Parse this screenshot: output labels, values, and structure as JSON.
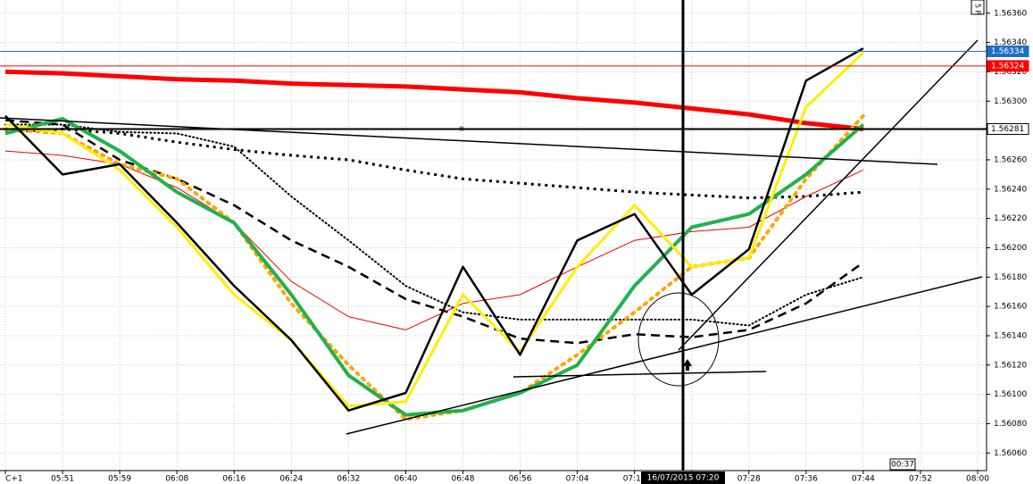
{
  "chart_data": {
    "type": "line",
    "categories": [
      "C+1",
      "05:51",
      "05:59",
      "06:08",
      "06:16",
      "06:24",
      "06:32",
      "06:40",
      "06:48",
      "06:56",
      "07:04",
      "07:12",
      null,
      "07:28",
      "07:36",
      "07:44",
      "07:52",
      "08:00"
    ],
    "ylim": [
      1.56048,
      1.56369
    ],
    "yticks": [
      {
        "value": 1.5636,
        "label": "1.56360"
      },
      {
        "value": 1.5634,
        "label": "1.56340"
      },
      {
        "value": 1.5632,
        "label": "1.56320"
      },
      {
        "value": 1.563,
        "label": "1.56300"
      },
      {
        "value": 1.5628,
        "label": "1.56280"
      },
      {
        "value": 1.5626,
        "label": "1.56260"
      },
      {
        "value": 1.5624,
        "label": "1.56240"
      },
      {
        "value": 1.5622,
        "label": "1.56220"
      },
      {
        "value": 1.562,
        "label": "1.56200"
      },
      {
        "value": 1.5618,
        "label": "1.56180"
      },
      {
        "value": 1.5616,
        "label": "1.56160"
      },
      {
        "value": 1.5614,
        "label": "1.56140"
      },
      {
        "value": 1.5612,
        "label": "1.56120"
      },
      {
        "value": 1.561,
        "label": "1.56100"
      },
      {
        "value": 1.5608,
        "label": "1.56080"
      },
      {
        "value": 1.5606,
        "label": "1.56060"
      }
    ],
    "grid": true,
    "series": [
      {
        "color": "#ff0000",
        "width": 5,
        "dash": "solid",
        "values": [
          1.5632,
          1.56319,
          1.56317,
          1.56315,
          1.56314,
          1.56312,
          1.56311,
          1.5631,
          1.56308,
          1.56306,
          1.56302,
          1.56299,
          1.56295,
          1.56291,
          1.56285,
          1.56281,
          null,
          null
        ]
      },
      {
        "color": "#000000",
        "width": 3,
        "dash": "square-dotted",
        "values": [
          1.56279,
          1.56281,
          1.56278,
          1.56272,
          1.56267,
          1.56263,
          1.5626,
          1.56253,
          1.56247,
          1.56244,
          1.56241,
          1.56238,
          1.56236,
          1.56234,
          1.56235,
          1.56238,
          null,
          null
        ]
      },
      {
        "color": "#000000",
        "width": 2,
        "dash": "dotted",
        "values": [
          1.56284,
          1.56284,
          1.56279,
          1.56278,
          1.56269,
          1.56235,
          1.56205,
          1.56174,
          1.56156,
          1.56151,
          1.56151,
          1.56151,
          1.56151,
          1.56147,
          1.56168,
          1.5618,
          null,
          null
        ]
      },
      {
        "color": "#000000",
        "width": 2.5,
        "dash": "dashed",
        "values": [
          1.56287,
          1.56284,
          1.5626,
          1.56247,
          1.56229,
          1.56205,
          1.56187,
          1.56165,
          1.56153,
          1.56138,
          1.56135,
          1.56141,
          1.56139,
          1.56144,
          1.56162,
          1.5619,
          null,
          null
        ]
      },
      {
        "color": "#ee0000",
        "width": 1,
        "dash": "solid",
        "values": [
          1.56266,
          1.56263,
          1.56257,
          1.56241,
          1.56217,
          1.56177,
          1.56153,
          1.56144,
          1.56162,
          1.56168,
          1.56187,
          1.56205,
          1.56211,
          1.56214,
          1.56235,
          1.56253,
          null,
          null
        ]
      },
      {
        "color": "#ffa500",
        "width": 4,
        "dash": "dotted",
        "values": [
          1.56281,
          1.56278,
          1.56257,
          1.56247,
          1.56217,
          1.56162,
          1.5612,
          1.56083,
          1.56089,
          1.56101,
          1.56127,
          1.56156,
          1.56187,
          1.56193,
          1.56247,
          1.5629,
          null,
          null
        ]
      },
      {
        "color": "#22b14c",
        "width": 4,
        "dash": "solid",
        "values": [
          1.56278,
          1.56288,
          1.56266,
          1.56238,
          1.56217,
          1.56168,
          1.56113,
          1.56086,
          1.56089,
          1.56101,
          1.5612,
          1.56174,
          1.56214,
          1.56223,
          1.5625,
          1.56284,
          null,
          null
        ]
      },
      {
        "color": "#ffee00",
        "width": 3,
        "dash": "solid",
        "values": [
          1.56284,
          1.56278,
          1.56253,
          1.56214,
          1.56168,
          1.56137,
          1.56092,
          1.56095,
          1.56168,
          1.56129,
          1.56187,
          1.56229,
          1.56187,
          1.56193,
          1.56296,
          1.56333,
          null,
          null
        ]
      },
      {
        "color": "#000000",
        "width": 2.5,
        "dash": "solid",
        "values": [
          1.5629,
          1.5625,
          1.56257,
          1.56217,
          1.56174,
          1.56137,
          1.56089,
          1.56101,
          1.56187,
          1.56127,
          1.56205,
          1.56223,
          1.56168,
          1.56199,
          1.56314,
          1.56336,
          null,
          null
        ]
      }
    ],
    "price_lines": [
      {
        "value": 1.56334,
        "color": "#1e6fc9"
      },
      {
        "value": 1.56324,
        "color": "#ff0000"
      },
      {
        "value": 1.56281,
        "color": "#000000"
      }
    ],
    "cursor_label": "16/07/2015 07:20",
    "countdown": "00:37",
    "corner_label": "5 P"
  }
}
